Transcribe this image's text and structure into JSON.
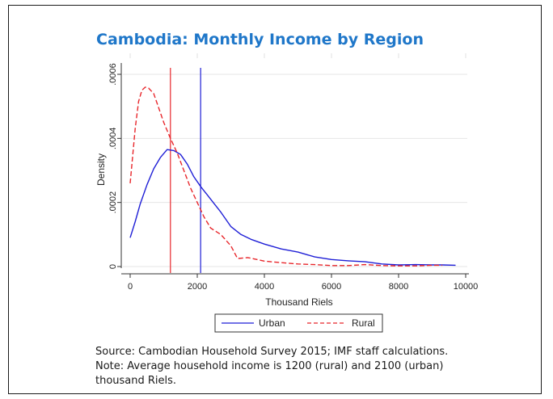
{
  "chart_data": {
    "type": "line",
    "title": "Cambodia: Monthly Income by Region",
    "xlabel": "Thousand Riels",
    "ylabel": "Density",
    "xlim": [
      0,
      10000
    ],
    "ylim": [
      0,
      0.0006
    ],
    "xticks": [
      0,
      2000,
      4000,
      6000,
      8000,
      10000
    ],
    "xtick_labels": [
      "0",
      "2000",
      "4000",
      "6000",
      "8000",
      "10000"
    ],
    "yticks": [
      0,
      0.0002,
      0.0004,
      0.0006
    ],
    "ytick_labels": [
      "0",
      ".0002",
      ".0004",
      ".0006"
    ],
    "grid": true,
    "legend_position": "bottom",
    "series": [
      {
        "name": "Urban",
        "color": "#1f1fd6",
        "style": "solid",
        "x": [
          0,
          150,
          300,
          500,
          700,
          900,
          1100,
          1300,
          1500,
          1700,
          1900,
          2100,
          2400,
          2700,
          3000,
          3300,
          3600,
          4000,
          4500,
          5000,
          5500,
          6000,
          6500,
          7000,
          7500,
          8000,
          8500,
          9000,
          9300,
          9700
        ],
        "y": [
          9e-05,
          0.00014,
          0.000195,
          0.000255,
          0.000305,
          0.00034,
          0.000365,
          0.000362,
          0.00035,
          0.00032,
          0.00028,
          0.00025,
          0.00021,
          0.00017,
          0.000125,
          0.0001,
          8.5e-05,
          7e-05,
          5.5e-05,
          4.5e-05,
          3e-05,
          2.2e-05,
          1.8e-05,
          1.5e-05,
          8e-06,
          5e-06,
          6e-06,
          5e-06,
          5e-06,
          4e-06
        ]
      },
      {
        "name": "Rural",
        "color": "#e8262b",
        "style": "dashed",
        "x": [
          0,
          150,
          250,
          350,
          450,
          550,
          700,
          850,
          1000,
          1200,
          1400,
          1600,
          1800,
          2000,
          2200,
          2400,
          2700,
          3000,
          3200,
          3500,
          4000,
          4500,
          5000,
          5500,
          6000,
          6500,
          7000,
          7500,
          8000,
          8500,
          9000,
          9300
        ],
        "y": [
          0.00026,
          0.00043,
          0.000515,
          0.00055,
          0.00056,
          0.000557,
          0.00054,
          0.000495,
          0.00045,
          0.0004,
          0.000355,
          0.0003,
          0.000245,
          0.0002,
          0.000155,
          0.00012,
          0.0001,
          6.5e-05,
          2.5e-05,
          2.8e-05,
          1.7e-05,
          1.2e-05,
          8e-06,
          6e-06,
          3e-06,
          3e-06,
          6e-06,
          3e-06,
          2e-06,
          2e-06,
          4e-06,
          4e-06
        ]
      }
    ],
    "reference_lines": [
      {
        "x": 1200,
        "color": "#e8262b"
      },
      {
        "x": 2100,
        "color": "#1f1fd6"
      }
    ]
  },
  "notes": {
    "source": "Source: Cambodian Household Survey 2015; IMF staff calculations.",
    "note_line1": "Note: Average household income is 1200 (rural) and 2100 (urban)",
    "note_line2": "thousand Riels."
  }
}
